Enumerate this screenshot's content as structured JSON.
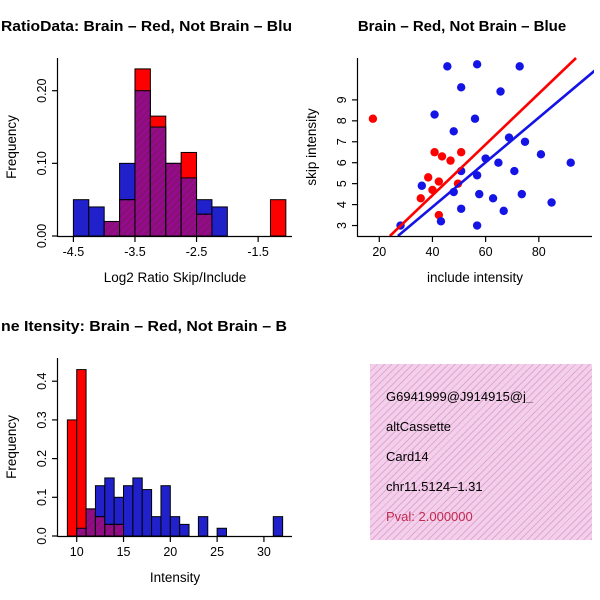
{
  "window": {
    "background": "#FFFFFF"
  },
  "info_box": {
    "background": "#F4CFEA",
    "hatch_color": "#E0A6D6",
    "lines": [
      {
        "text": "G6941999@J914915@j_",
        "color": "#000000"
      },
      {
        "text": "altCassette",
        "color": "#000000"
      },
      {
        "text": "Card14",
        "color": "#000000"
      },
      {
        "text": "chr11.5124–1.31",
        "color": "#000000"
      },
      {
        "text": "Pval: 2.000000",
        "color": "#C22B50"
      }
    ]
  },
  "chart_data": [
    {
      "id": "ratio-histogram",
      "dom": "chart-ratio",
      "type": "bar",
      "title": "RatioData: Brain – Red, Not Brain – Blu",
      "title_anchor": "start",
      "title_length": 291,
      "xlabel": "Log2 Ratio Skip/Include",
      "ylabel": "Frequency",
      "xlim": [
        -4.75,
        -0.95
      ],
      "ylim": [
        0,
        0.245
      ],
      "xticks": [
        -4.5,
        -3.5,
        -2.5,
        -1.5
      ],
      "xtick_labels": [
        "-4.5",
        "-3.5",
        "-2.5",
        "-1.5"
      ],
      "yticks": [
        0,
        0.1,
        0.2
      ],
      "ytick_labels": [
        "0.00",
        "0.10",
        "0.20"
      ],
      "bin_width": 0.25,
      "legend_note": "red = Brain, blue = Not Brain, hatched purple = overlap",
      "colors": {
        "red": "#FF0000",
        "blue": "#2121CC"
      },
      "bars": [
        {
          "x": -4.5,
          "red": 0,
          "blue": 0.05
        },
        {
          "x": -4.25,
          "red": 0,
          "blue": 0.04
        },
        {
          "x": -4.0,
          "red": 0.02,
          "blue": 0.02
        },
        {
          "x": -3.75,
          "red": 0.05,
          "blue": 0.1
        },
        {
          "x": -3.5,
          "red": 0.23,
          "blue": 0.2
        },
        {
          "x": -3.25,
          "red": 0.165,
          "blue": 0.15
        },
        {
          "x": -3.0,
          "red": 0.1,
          "blue": 0.1
        },
        {
          "x": -2.75,
          "red": 0.115,
          "blue": 0.08
        },
        {
          "x": -2.5,
          "red": 0.03,
          "blue": 0.05
        },
        {
          "x": -2.25,
          "red": 0,
          "blue": 0.04
        },
        {
          "x": -1.3,
          "red": 0.05,
          "blue": 0
        }
      ]
    },
    {
      "id": "intensity-scatter",
      "dom": "chart-scatter",
      "type": "scatter",
      "title": "Brain – Red, Not Brain – Blue",
      "title_anchor": "middle",
      "title_x": 162,
      "xlabel": "include intensity",
      "ylabel": "skip intensity",
      "xlim": [
        12,
        100
      ],
      "ylim": [
        2.5,
        11
      ],
      "xticks": [
        20,
        40,
        60,
        80
      ],
      "xtick_labels": [
        "20",
        "40",
        "60",
        "80"
      ],
      "yticks": [
        3,
        4,
        5,
        6,
        7,
        8,
        9
      ],
      "ytick_labels": [
        "3",
        "4",
        "5",
        "6",
        "7",
        "8",
        "9"
      ],
      "series": [
        {
          "name": "brain",
          "color": "#FF0000",
          "points": [
            [
              17.6,
              8.1
            ],
            [
              40.8,
              6.5
            ],
            [
              43.6,
              6.3
            ],
            [
              46.8,
              6.1
            ],
            [
              50.8,
              6.5
            ],
            [
              38.4,
              5.3
            ],
            [
              42.4,
              5.1
            ],
            [
              40,
              4.7
            ],
            [
              35.6,
              4.3
            ],
            [
              49.6,
              5.0
            ],
            [
              42.4,
              3.5
            ]
          ]
        },
        {
          "name": "not_brain",
          "color": "#1414E6",
          "points": [
            [
              45.6,
              10.6
            ],
            [
              56.8,
              10.7
            ],
            [
              72.8,
              10.6
            ],
            [
              50.8,
              9.6
            ],
            [
              65.6,
              9.4
            ],
            [
              40.8,
              8.3
            ],
            [
              56,
              8.1
            ],
            [
              48,
              7.5
            ],
            [
              68.8,
              7.2
            ],
            [
              74.8,
              7.0
            ],
            [
              60,
              6.2
            ],
            [
              64.8,
              6.0
            ],
            [
              80.8,
              6.4
            ],
            [
              50.8,
              5.6
            ],
            [
              56.8,
              5.4
            ],
            [
              70.8,
              5.6
            ],
            [
              92,
              6.0
            ],
            [
              36,
              4.9
            ],
            [
              48,
              4.6
            ],
            [
              57.6,
              4.5
            ],
            [
              62.8,
              4.3
            ],
            [
              73.6,
              4.5
            ],
            [
              50.8,
              3.8
            ],
            [
              66.8,
              3.7
            ],
            [
              43.2,
              3.2
            ],
            [
              56.8,
              3.0
            ],
            [
              28,
              3.0
            ],
            [
              84.8,
              4.1
            ]
          ]
        }
      ],
      "lines": [
        {
          "name": "brain-fit",
          "color": "#FF0000",
          "from": [
            24,
            2.5
          ],
          "to": [
            94,
            11
          ]
        },
        {
          "name": "not-brain-fit",
          "color": "#1414E6",
          "from": [
            27,
            2.5
          ],
          "to": [
            102,
            10.5
          ]
        }
      ]
    },
    {
      "id": "gene-intensity-histogram",
      "dom": "chart-gene",
      "type": "bar",
      "title": "ne Itensity: Brain – Red, Not Brain – B",
      "title_anchor": "start",
      "title_length": 286,
      "xlabel": "Intensity",
      "ylabel": "Frequency",
      "xlim": [
        8,
        33
      ],
      "ylim": [
        0,
        0.46
      ],
      "xticks": [
        10,
        15,
        20,
        25,
        30
      ],
      "xtick_labels": [
        "10",
        "15",
        "20",
        "25",
        "30"
      ],
      "yticks": [
        0,
        0.1,
        0.2,
        0.3,
        0.4
      ],
      "ytick_labels": [
        "0.0",
        "0.1",
        "0.2",
        "0.3",
        "0.4"
      ],
      "bin_width": 1,
      "legend_note": "red = Brain, blue = Not Brain, hatched purple = overlap",
      "colors": {
        "red": "#FF0000",
        "blue": "#2121CC"
      },
      "bars": [
        {
          "x": 9,
          "red": 0.3,
          "blue": 0
        },
        {
          "x": 10,
          "red": 0.43,
          "blue": 0.02
        },
        {
          "x": 11,
          "red": 0.07,
          "blue": 0.07
        },
        {
          "x": 12,
          "red": 0.05,
          "blue": 0.13
        },
        {
          "x": 13,
          "red": 0.03,
          "blue": 0.15
        },
        {
          "x": 14,
          "red": 0.03,
          "blue": 0.1
        },
        {
          "x": 15,
          "red": 0,
          "blue": 0.13
        },
        {
          "x": 16,
          "red": 0,
          "blue": 0.15
        },
        {
          "x": 17,
          "red": 0,
          "blue": 0.12
        },
        {
          "x": 18,
          "red": 0,
          "blue": 0.05
        },
        {
          "x": 19,
          "red": 0,
          "blue": 0.13
        },
        {
          "x": 20,
          "red": 0,
          "blue": 0.05
        },
        {
          "x": 21,
          "red": 0,
          "blue": 0.03
        },
        {
          "x": 23,
          "red": 0,
          "blue": 0.05
        },
        {
          "x": 25,
          "red": 0,
          "blue": 0.02
        },
        {
          "x": 31,
          "red": 0,
          "blue": 0.05
        }
      ]
    }
  ]
}
